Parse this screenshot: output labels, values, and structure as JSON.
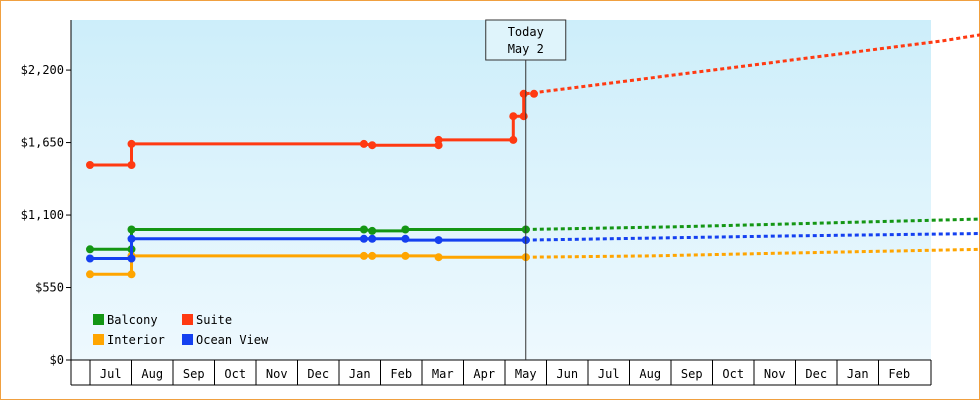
{
  "chart_data": {
    "type": "line",
    "title": "",
    "xlabel": "",
    "ylabel": "",
    "y_ticks": [
      0,
      550,
      1100,
      1650,
      2200
    ],
    "y_tick_labels": [
      "$0",
      "$550",
      "$1,100",
      "$1,650",
      "$2,200"
    ],
    "ylim": [
      0,
      2580
    ],
    "x_months": [
      "Jul",
      "Aug",
      "Sep",
      "Oct",
      "Nov",
      "Dec",
      "Jan",
      "Feb",
      "Mar",
      "Apr",
      "May",
      "Jun",
      "Jul",
      "Aug",
      "Sep",
      "Oct",
      "Nov",
      "Dec",
      "Jan",
      "Feb"
    ],
    "today_marker": {
      "line1": "Today",
      "line2": "May 2",
      "x": 10.0
    },
    "legend": {
      "placement": "bottom-left",
      "entries": [
        "Balcony",
        "Suite",
        "Interior",
        "Ocean View"
      ]
    },
    "grid": false,
    "series": [
      {
        "name": "Balcony",
        "color": "#149614",
        "points": [
          [
            -0.5,
            840
          ],
          [
            0.5,
            840
          ],
          [
            0.5,
            990
          ],
          [
            6.1,
            990
          ],
          [
            6.3,
            980
          ],
          [
            7.1,
            980
          ],
          [
            7.1,
            990
          ],
          [
            10.0,
            990
          ]
        ],
        "markers": [
          [
            -0.5,
            840
          ],
          [
            0.5,
            840
          ],
          [
            0.5,
            990
          ],
          [
            6.1,
            990
          ],
          [
            6.3,
            980
          ],
          [
            7.1,
            990
          ],
          [
            10.0,
            990
          ]
        ],
        "forecast": [
          [
            10.0,
            990
          ],
          [
            13.5,
            1010
          ],
          [
            16,
            1030
          ],
          [
            18.5,
            1050
          ],
          [
            21.0,
            1070
          ]
        ]
      },
      {
        "name": "Suite",
        "color": "#ff3a12",
        "points": [
          [
            -0.5,
            1480
          ],
          [
            0.5,
            1480
          ],
          [
            0.5,
            1640
          ],
          [
            6.1,
            1640
          ],
          [
            6.3,
            1630
          ],
          [
            7.9,
            1630
          ],
          [
            7.9,
            1670
          ],
          [
            9.7,
            1670
          ],
          [
            9.7,
            1850
          ],
          [
            9.95,
            1850
          ],
          [
            9.95,
            2020
          ],
          [
            10.0,
            2020
          ]
        ],
        "markers": [
          [
            -0.5,
            1480
          ],
          [
            0.5,
            1480
          ],
          [
            0.5,
            1640
          ],
          [
            6.1,
            1640
          ],
          [
            6.3,
            1630
          ],
          [
            7.9,
            1630
          ],
          [
            7.9,
            1670
          ],
          [
            9.7,
            1670
          ],
          [
            9.7,
            1850
          ],
          [
            9.95,
            1850
          ],
          [
            9.95,
            2020
          ],
          [
            10.2,
            2020
          ]
        ],
        "forecast": [
          [
            10.0,
            2020
          ],
          [
            12,
            2100
          ],
          [
            14,
            2180
          ],
          [
            16,
            2260
          ],
          [
            18,
            2340
          ],
          [
            20,
            2420
          ],
          [
            21.0,
            2470
          ]
        ]
      },
      {
        "name": "Interior",
        "color": "#ffa500",
        "points": [
          [
            -0.5,
            650
          ],
          [
            0.5,
            650
          ],
          [
            0.5,
            790
          ],
          [
            7.9,
            790
          ],
          [
            7.9,
            780
          ],
          [
            10.0,
            780
          ]
        ],
        "markers": [
          [
            -0.5,
            650
          ],
          [
            0.5,
            650
          ],
          [
            0.5,
            790
          ],
          [
            6.1,
            790
          ],
          [
            6.3,
            790
          ],
          [
            7.1,
            790
          ],
          [
            7.9,
            780
          ],
          [
            10.0,
            780
          ]
        ],
        "forecast": [
          [
            10.0,
            780
          ],
          [
            13,
            790
          ],
          [
            16,
            810
          ],
          [
            18.5,
            825
          ],
          [
            21.0,
            840
          ]
        ]
      },
      {
        "name": "Ocean View",
        "color": "#1440f0",
        "points": [
          [
            -0.5,
            770
          ],
          [
            0.5,
            770
          ],
          [
            0.5,
            920
          ],
          [
            6.1,
            920
          ],
          [
            6.3,
            920
          ],
          [
            7.1,
            920
          ],
          [
            7.1,
            910
          ],
          [
            10.0,
            910
          ]
        ],
        "markers": [
          [
            -0.5,
            770
          ],
          [
            0.5,
            770
          ],
          [
            0.5,
            920
          ],
          [
            6.1,
            920
          ],
          [
            6.3,
            920
          ],
          [
            7.1,
            920
          ],
          [
            7.9,
            910
          ],
          [
            10.0,
            910
          ]
        ],
        "forecast": [
          [
            10.0,
            910
          ],
          [
            13,
            925
          ],
          [
            16,
            940
          ],
          [
            18.5,
            950
          ],
          [
            21.0,
            960
          ]
        ]
      }
    ]
  }
}
